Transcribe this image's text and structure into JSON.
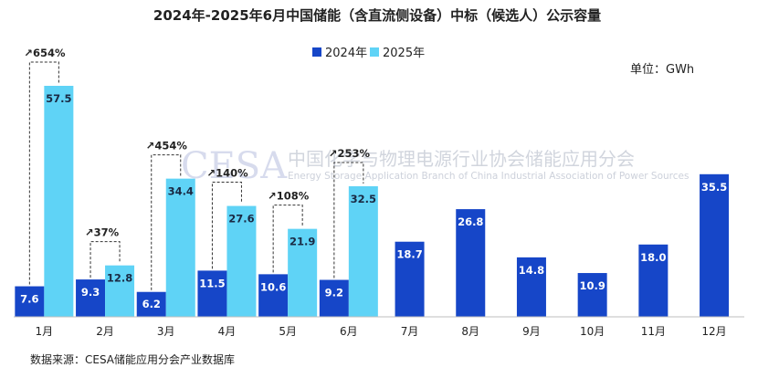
{
  "chart_data": {
    "type": "bar",
    "title": "2024年-2025年6月中国储能（含直流侧设备）中标（候选人）公示容量",
    "unit_label": "单位：GWh",
    "categories": [
      "1月",
      "2月",
      "3月",
      "4月",
      "5月",
      "6月",
      "7月",
      "8月",
      "9月",
      "10月",
      "11月",
      "12月"
    ],
    "series": [
      {
        "name": "2024年",
        "color": "#1646c8",
        "values": [
          7.6,
          9.3,
          6.2,
          11.5,
          10.6,
          9.2,
          18.7,
          26.8,
          14.8,
          10.9,
          18.0,
          35.5
        ]
      },
      {
        "name": "2025年",
        "color": "#5fd3f6",
        "values": [
          57.5,
          12.8,
          34.4,
          27.6,
          21.9,
          32.5,
          null,
          null,
          null,
          null,
          null,
          null
        ]
      }
    ],
    "value_labels": {
      "2024年": [
        "7.6",
        "9.3",
        "6.2",
        "11.5",
        "10.6",
        "9.2",
        "18.7",
        "26.8",
        "14.8",
        "10.9",
        "18.0",
        "35.5"
      ],
      "2025年": [
        "57.5",
        "12.8",
        "34.4",
        "27.6",
        "21.9",
        "32.5",
        "",
        "",
        "",
        "",
        "",
        ""
      ]
    },
    "growth_annotations": [
      {
        "category": "1月",
        "text": "↗654%"
      },
      {
        "category": "2月",
        "text": "↗37%"
      },
      {
        "category": "3月",
        "text": "↗454%"
      },
      {
        "category": "4月",
        "text": "↗140%"
      },
      {
        "category": "5月",
        "text": "↗108%"
      },
      {
        "category": "6月",
        "text": "↗253%"
      }
    ],
    "ylim": [
      0,
      62
    ],
    "grid": false,
    "legend_position": "top-center"
  },
  "source_note": "数据来源：CESA储能应用分会产业数据库",
  "watermark": {
    "logo_text": "CESA",
    "name_cn": "中国化学与物理电源行业协会储能应用分会",
    "name_en": "Energy Storage Application Branch of China Industrial Association of Power Sources"
  }
}
